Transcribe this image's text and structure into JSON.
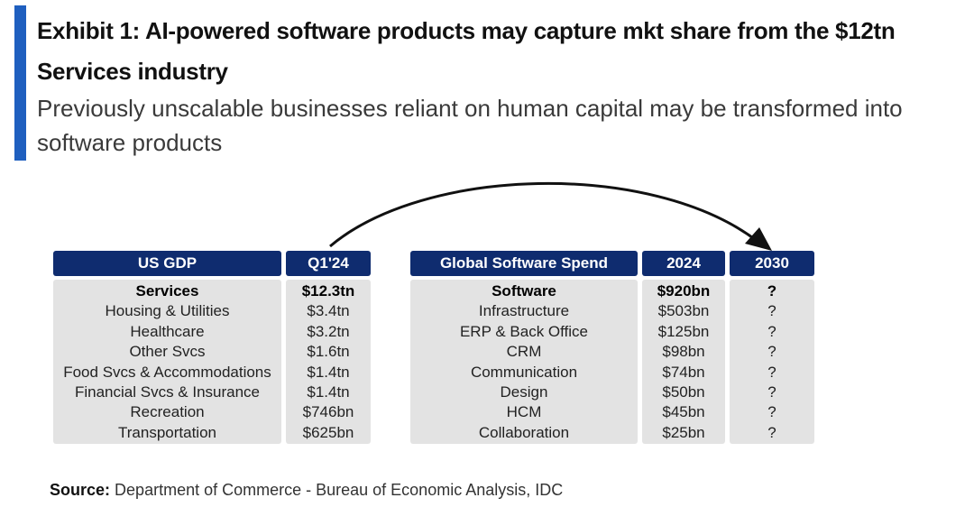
{
  "header": {
    "title": "Exhibit 1: AI-powered software products may capture mkt share from the $12tn Services industry",
    "subtitle": "Previously unscalable businesses reliant on human capital may be transformed into software products"
  },
  "accent_color": "#1f5fbf",
  "header_color": "#0f2c6f",
  "left_table": {
    "col1_header": "US GDP",
    "col2_header": "Q1'24",
    "rows": [
      {
        "label": "Services",
        "value": "$12.3tn",
        "bold": true
      },
      {
        "label": "Housing & Utilities",
        "value": "$3.4tn"
      },
      {
        "label": "Healthcare",
        "value": "$3.2tn"
      },
      {
        "label": "Other Svcs",
        "value": "$1.6tn"
      },
      {
        "label": "Food Svcs & Accommodations",
        "value": "$1.4tn"
      },
      {
        "label": "Financial Svcs & Insurance",
        "value": "$1.4tn"
      },
      {
        "label": "Recreation",
        "value": "$746bn"
      },
      {
        "label": "Transportation",
        "value": "$625bn"
      }
    ]
  },
  "right_table": {
    "col1_header": "Global Software Spend",
    "col2_header": "2024",
    "col3_header": "2030",
    "rows": [
      {
        "label": "Software",
        "value": "$920bn",
        "future": "?",
        "bold": true
      },
      {
        "label": "Infrastructure",
        "value": "$503bn",
        "future": "?"
      },
      {
        "label": "ERP & Back Office",
        "value": "$125bn",
        "future": "?"
      },
      {
        "label": "CRM",
        "value": "$98bn",
        "future": "?"
      },
      {
        "label": "Communication",
        "value": "$74bn",
        "future": "?"
      },
      {
        "label": "Design",
        "value": "$50bn",
        "future": "?"
      },
      {
        "label": "HCM",
        "value": "$45bn",
        "future": "?"
      },
      {
        "label": "Collaboration",
        "value": "$25bn",
        "future": "?"
      }
    ]
  },
  "source": {
    "label": "Source:",
    "text": "Department of Commerce - Bureau of Economic Analysis, IDC"
  }
}
